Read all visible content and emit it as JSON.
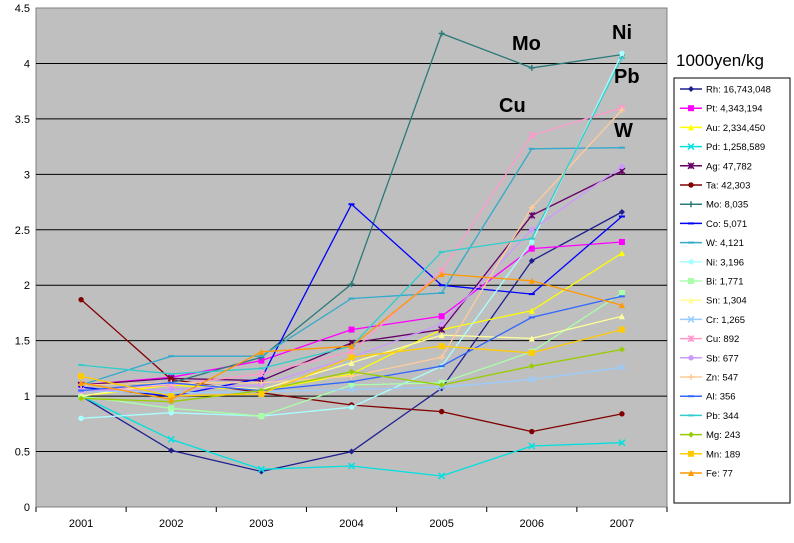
{
  "chart_data": {
    "type": "line",
    "title": "",
    "unit_label": "1000yen/kg",
    "xlabel": "",
    "ylabel": "",
    "categories": [
      "2001",
      "2002",
      "2003",
      "2004",
      "2005",
      "2006",
      "2007"
    ],
    "ylim": [
      0,
      4.5
    ],
    "yticks": [
      "0",
      "0.5",
      "1",
      "1.5",
      "2",
      "2.5",
      "3",
      "3.5",
      "4",
      "4.5"
    ],
    "grid": true,
    "legend_position": "right",
    "annotations": [
      "Mo",
      "Ni",
      "Cu",
      "Pb",
      "W"
    ],
    "series": [
      {
        "name": "Rh: 16,743,048",
        "color": "#1f1f8f",
        "marker": "diamond",
        "values": [
          1.0,
          0.51,
          0.32,
          0.5,
          1.07,
          2.22,
          2.66
        ]
      },
      {
        "name": "Pt: 4,343,194",
        "color": "#ff00ff",
        "marker": "square",
        "values": [
          1.1,
          1.17,
          1.32,
          1.6,
          1.72,
          2.33,
          2.39
        ]
      },
      {
        "name": "Au: 2,334,450",
        "color": "#ffff00",
        "marker": "triangle",
        "values": [
          1.0,
          1.1,
          1.05,
          1.2,
          1.6,
          1.77,
          2.29
        ]
      },
      {
        "name": "Pd: 1,258,589",
        "color": "#00e0e0",
        "marker": "x",
        "values": [
          1.0,
          0.61,
          0.34,
          0.37,
          0.28,
          0.55,
          0.58
        ]
      },
      {
        "name": "Ag: 47,782",
        "color": "#660066",
        "marker": "star",
        "values": [
          1.1,
          1.16,
          1.14,
          1.48,
          1.6,
          2.63,
          3.03
        ]
      },
      {
        "name": "Ta: 42,303",
        "color": "#800000",
        "marker": "circle",
        "values": [
          1.87,
          1.15,
          1.03,
          0.92,
          0.86,
          0.68,
          0.84
        ]
      },
      {
        "name": "Mo: 8,035",
        "color": "#2b7a78",
        "marker": "plus",
        "values": [
          1.1,
          1.12,
          1.35,
          2.01,
          4.27,
          3.96,
          4.08
        ]
      },
      {
        "name": "Co: 5,071",
        "color": "#0000ff",
        "marker": "dash",
        "values": [
          1.08,
          1.0,
          1.16,
          2.73,
          2.0,
          1.92,
          2.62
        ]
      },
      {
        "name": "W: 4,121",
        "color": "#33aacc",
        "marker": "dash",
        "values": [
          1.1,
          1.36,
          1.36,
          1.88,
          1.93,
          3.23,
          3.24
        ]
      },
      {
        "name": "Ni: 3,196",
        "color": "#aaffff",
        "marker": "circle",
        "values": [
          0.8,
          0.85,
          0.82,
          0.9,
          1.27,
          2.39,
          4.09
        ]
      },
      {
        "name": "Bi: 1,771",
        "color": "#aaffaa",
        "marker": "square",
        "values": [
          1.0,
          0.89,
          0.82,
          1.1,
          1.12,
          1.4,
          1.93
        ]
      },
      {
        "name": "Sn: 1,304",
        "color": "#ffff99",
        "marker": "triangle",
        "values": [
          1.0,
          1.12,
          1.06,
          1.3,
          1.55,
          1.52,
          1.72
        ]
      },
      {
        "name": "Cr: 1,265",
        "color": "#99ccff",
        "marker": "x",
        "values": [
          1.05,
          1.03,
          1.04,
          1.06,
          1.08,
          1.15,
          1.26
        ]
      },
      {
        "name": "Cu: 892",
        "color": "#ff99cc",
        "marker": "star",
        "values": [
          1.05,
          1.1,
          1.2,
          1.4,
          2.13,
          3.35,
          3.6
        ]
      },
      {
        "name": "Sb: 677",
        "color": "#cc99ff",
        "marker": "circle",
        "values": [
          1.05,
          1.06,
          1.1,
          1.35,
          1.65,
          2.5,
          3.07
        ]
      },
      {
        "name": "Zn: 547",
        "color": "#ffcc99",
        "marker": "plus",
        "values": [
          1.1,
          1.12,
          1.12,
          1.18,
          1.35,
          2.7,
          3.58
        ]
      },
      {
        "name": "Al: 356",
        "color": "#3366ff",
        "marker": "dash",
        "values": [
          1.05,
          1.12,
          1.05,
          1.13,
          1.27,
          1.71,
          1.9
        ]
      },
      {
        "name": "Pb: 344",
        "color": "#33cccc",
        "marker": "dash",
        "values": [
          1.28,
          1.2,
          1.25,
          1.45,
          2.3,
          2.42,
          4.05
        ]
      },
      {
        "name": "Mg: 243",
        "color": "#99cc00",
        "marker": "diamond",
        "values": [
          0.98,
          0.95,
          1.05,
          1.22,
          1.1,
          1.27,
          1.42
        ]
      },
      {
        "name": "Mn: 189",
        "color": "#ffcc00",
        "marker": "square",
        "values": [
          1.18,
          1.0,
          1.02,
          1.35,
          1.45,
          1.39,
          1.6
        ]
      },
      {
        "name": "Fe: 77",
        "color": "#ff9900",
        "marker": "triangle",
        "values": [
          1.12,
          0.97,
          1.4,
          1.45,
          2.1,
          2.04,
          1.82
        ]
      }
    ]
  }
}
